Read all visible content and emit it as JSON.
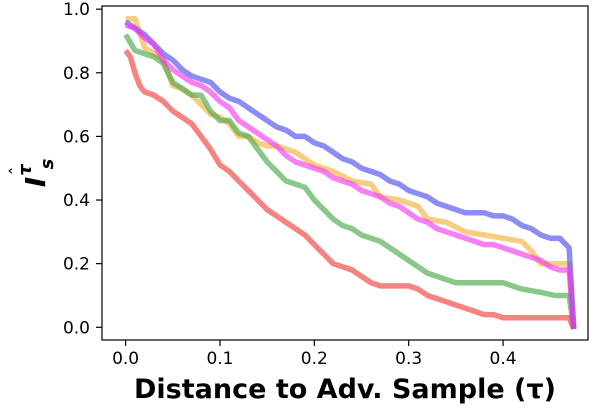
{
  "chart_data": {
    "type": "line",
    "title": "",
    "xlabel": "Distance to Adv. Sample (τ)",
    "ylabel": {
      "symbol": "I",
      "subscript": "s",
      "superscript": "τ",
      "accent": "ˆ"
    },
    "xlim": [
      -0.025,
      0.49
    ],
    "ylim": [
      -0.04,
      1.01
    ],
    "x_ticks": [
      "0.0",
      "0.1",
      "0.2",
      "0.3",
      "0.4"
    ],
    "x_tick_values": [
      0.0,
      0.1,
      0.2,
      0.3,
      0.4
    ],
    "y_ticks": [
      "0.0",
      "0.2",
      "0.4",
      "0.6",
      "0.8",
      "1.0"
    ],
    "y_tick_values": [
      0.0,
      0.2,
      0.4,
      0.6,
      0.8,
      1.0
    ],
    "grid": false,
    "legend": "none",
    "series": [
      {
        "color": "#f5b13d",
        "points": [
          [
            0.0,
            0.97
          ],
          [
            0.01,
            0.97
          ],
          [
            0.02,
            0.88
          ],
          [
            0.03,
            0.86
          ],
          [
            0.04,
            0.84
          ],
          [
            0.05,
            0.76
          ],
          [
            0.06,
            0.75
          ],
          [
            0.07,
            0.73
          ],
          [
            0.08,
            0.7
          ],
          [
            0.09,
            0.67
          ],
          [
            0.1,
            0.66
          ],
          [
            0.11,
            0.64
          ],
          [
            0.12,
            0.6
          ],
          [
            0.13,
            0.6
          ],
          [
            0.14,
            0.58
          ],
          [
            0.15,
            0.57
          ],
          [
            0.16,
            0.57
          ],
          [
            0.17,
            0.56
          ],
          [
            0.18,
            0.55
          ],
          [
            0.19,
            0.53
          ],
          [
            0.2,
            0.51
          ],
          [
            0.22,
            0.49
          ],
          [
            0.24,
            0.46
          ],
          [
            0.26,
            0.45
          ],
          [
            0.27,
            0.41
          ],
          [
            0.29,
            0.4
          ],
          [
            0.31,
            0.38
          ],
          [
            0.32,
            0.34
          ],
          [
            0.34,
            0.33
          ],
          [
            0.36,
            0.3
          ],
          [
            0.38,
            0.29
          ],
          [
            0.4,
            0.28
          ],
          [
            0.42,
            0.27
          ],
          [
            0.43,
            0.24
          ],
          [
            0.44,
            0.2
          ],
          [
            0.46,
            0.2
          ],
          [
            0.47,
            0.2
          ],
          [
            0.475,
            -0.005
          ]
        ]
      },
      {
        "color": "#4caa4c",
        "points": [
          [
            0.0,
            0.92
          ],
          [
            0.01,
            0.87
          ],
          [
            0.02,
            0.86
          ],
          [
            0.03,
            0.85
          ],
          [
            0.04,
            0.83
          ],
          [
            0.05,
            0.77
          ],
          [
            0.06,
            0.75
          ],
          [
            0.07,
            0.73
          ],
          [
            0.08,
            0.73
          ],
          [
            0.09,
            0.68
          ],
          [
            0.1,
            0.65
          ],
          [
            0.11,
            0.65
          ],
          [
            0.12,
            0.61
          ],
          [
            0.13,
            0.6
          ],
          [
            0.14,
            0.56
          ],
          [
            0.15,
            0.52
          ],
          [
            0.16,
            0.49
          ],
          [
            0.17,
            0.46
          ],
          [
            0.18,
            0.45
          ],
          [
            0.19,
            0.44
          ],
          [
            0.2,
            0.4
          ],
          [
            0.21,
            0.37
          ],
          [
            0.22,
            0.34
          ],
          [
            0.23,
            0.32
          ],
          [
            0.24,
            0.31
          ],
          [
            0.25,
            0.29
          ],
          [
            0.26,
            0.28
          ],
          [
            0.27,
            0.27
          ],
          [
            0.28,
            0.25
          ],
          [
            0.29,
            0.23
          ],
          [
            0.3,
            0.21
          ],
          [
            0.31,
            0.19
          ],
          [
            0.32,
            0.17
          ],
          [
            0.33,
            0.16
          ],
          [
            0.34,
            0.15
          ],
          [
            0.35,
            0.14
          ],
          [
            0.36,
            0.14
          ],
          [
            0.38,
            0.14
          ],
          [
            0.4,
            0.14
          ],
          [
            0.42,
            0.12
          ],
          [
            0.44,
            0.11
          ],
          [
            0.455,
            0.1
          ],
          [
            0.47,
            0.1
          ],
          [
            0.475,
            -0.005
          ]
        ]
      },
      {
        "color": "#f0403c",
        "points": [
          [
            0.0,
            0.87
          ],
          [
            0.005,
            0.85
          ],
          [
            0.01,
            0.8
          ],
          [
            0.015,
            0.76
          ],
          [
            0.02,
            0.74
          ],
          [
            0.03,
            0.73
          ],
          [
            0.04,
            0.71
          ],
          [
            0.05,
            0.68
          ],
          [
            0.06,
            0.66
          ],
          [
            0.07,
            0.64
          ],
          [
            0.08,
            0.6
          ],
          [
            0.09,
            0.56
          ],
          [
            0.1,
            0.51
          ],
          [
            0.11,
            0.49
          ],
          [
            0.12,
            0.46
          ],
          [
            0.13,
            0.43
          ],
          [
            0.14,
            0.4
          ],
          [
            0.15,
            0.37
          ],
          [
            0.16,
            0.35
          ],
          [
            0.17,
            0.33
          ],
          [
            0.18,
            0.31
          ],
          [
            0.19,
            0.29
          ],
          [
            0.2,
            0.26
          ],
          [
            0.21,
            0.23
          ],
          [
            0.22,
            0.2
          ],
          [
            0.23,
            0.19
          ],
          [
            0.24,
            0.18
          ],
          [
            0.25,
            0.16
          ],
          [
            0.26,
            0.14
          ],
          [
            0.27,
            0.13
          ],
          [
            0.28,
            0.13
          ],
          [
            0.29,
            0.13
          ],
          [
            0.3,
            0.13
          ],
          [
            0.31,
            0.12
          ],
          [
            0.32,
            0.1
          ],
          [
            0.33,
            0.09
          ],
          [
            0.34,
            0.08
          ],
          [
            0.35,
            0.07
          ],
          [
            0.36,
            0.06
          ],
          [
            0.37,
            0.05
          ],
          [
            0.38,
            0.04
          ],
          [
            0.39,
            0.04
          ],
          [
            0.4,
            0.03
          ],
          [
            0.43,
            0.03
          ],
          [
            0.47,
            0.03
          ],
          [
            0.475,
            -0.005
          ]
        ]
      },
      {
        "color": "#4f4ff0",
        "points": [
          [
            0.0,
            0.96
          ],
          [
            0.01,
            0.94
          ],
          [
            0.02,
            0.92
          ],
          [
            0.03,
            0.89
          ],
          [
            0.04,
            0.86
          ],
          [
            0.05,
            0.84
          ],
          [
            0.06,
            0.81
          ],
          [
            0.07,
            0.79
          ],
          [
            0.08,
            0.78
          ],
          [
            0.09,
            0.77
          ],
          [
            0.1,
            0.74
          ],
          [
            0.11,
            0.72
          ],
          [
            0.12,
            0.71
          ],
          [
            0.13,
            0.69
          ],
          [
            0.14,
            0.67
          ],
          [
            0.15,
            0.65
          ],
          [
            0.16,
            0.63
          ],
          [
            0.17,
            0.62
          ],
          [
            0.18,
            0.6
          ],
          [
            0.19,
            0.6
          ],
          [
            0.2,
            0.58
          ],
          [
            0.21,
            0.57
          ],
          [
            0.22,
            0.55
          ],
          [
            0.23,
            0.53
          ],
          [
            0.24,
            0.52
          ],
          [
            0.25,
            0.5
          ],
          [
            0.26,
            0.49
          ],
          [
            0.27,
            0.48
          ],
          [
            0.28,
            0.46
          ],
          [
            0.29,
            0.45
          ],
          [
            0.3,
            0.43
          ],
          [
            0.31,
            0.42
          ],
          [
            0.32,
            0.41
          ],
          [
            0.33,
            0.39
          ],
          [
            0.34,
            0.38
          ],
          [
            0.35,
            0.37
          ],
          [
            0.36,
            0.36
          ],
          [
            0.37,
            0.36
          ],
          [
            0.38,
            0.36
          ],
          [
            0.39,
            0.35
          ],
          [
            0.4,
            0.35
          ],
          [
            0.41,
            0.34
          ],
          [
            0.42,
            0.32
          ],
          [
            0.43,
            0.31
          ],
          [
            0.44,
            0.29
          ],
          [
            0.45,
            0.28
          ],
          [
            0.46,
            0.28
          ],
          [
            0.47,
            0.25
          ],
          [
            0.475,
            -0.005
          ]
        ]
      },
      {
        "color": "#f53cf0",
        "points": [
          [
            0.0,
            0.95
          ],
          [
            0.01,
            0.94
          ],
          [
            0.02,
            0.91
          ],
          [
            0.03,
            0.89
          ],
          [
            0.04,
            0.84
          ],
          [
            0.05,
            0.81
          ],
          [
            0.06,
            0.79
          ],
          [
            0.07,
            0.77
          ],
          [
            0.08,
            0.76
          ],
          [
            0.09,
            0.74
          ],
          [
            0.1,
            0.71
          ],
          [
            0.11,
            0.69
          ],
          [
            0.12,
            0.65
          ],
          [
            0.13,
            0.63
          ],
          [
            0.14,
            0.61
          ],
          [
            0.15,
            0.59
          ],
          [
            0.16,
            0.57
          ],
          [
            0.17,
            0.54
          ],
          [
            0.18,
            0.52
          ],
          [
            0.19,
            0.51
          ],
          [
            0.2,
            0.5
          ],
          [
            0.21,
            0.49
          ],
          [
            0.22,
            0.47
          ],
          [
            0.23,
            0.46
          ],
          [
            0.24,
            0.45
          ],
          [
            0.25,
            0.43
          ],
          [
            0.26,
            0.42
          ],
          [
            0.27,
            0.41
          ],
          [
            0.28,
            0.39
          ],
          [
            0.29,
            0.38
          ],
          [
            0.3,
            0.36
          ],
          [
            0.31,
            0.34
          ],
          [
            0.32,
            0.33
          ],
          [
            0.33,
            0.31
          ],
          [
            0.34,
            0.3
          ],
          [
            0.35,
            0.29
          ],
          [
            0.36,
            0.28
          ],
          [
            0.37,
            0.27
          ],
          [
            0.38,
            0.26
          ],
          [
            0.39,
            0.26
          ],
          [
            0.4,
            0.25
          ],
          [
            0.41,
            0.24
          ],
          [
            0.42,
            0.23
          ],
          [
            0.43,
            0.22
          ],
          [
            0.44,
            0.21
          ],
          [
            0.45,
            0.19
          ],
          [
            0.46,
            0.18
          ],
          [
            0.47,
            0.18
          ],
          [
            0.475,
            -0.005
          ]
        ]
      }
    ]
  }
}
